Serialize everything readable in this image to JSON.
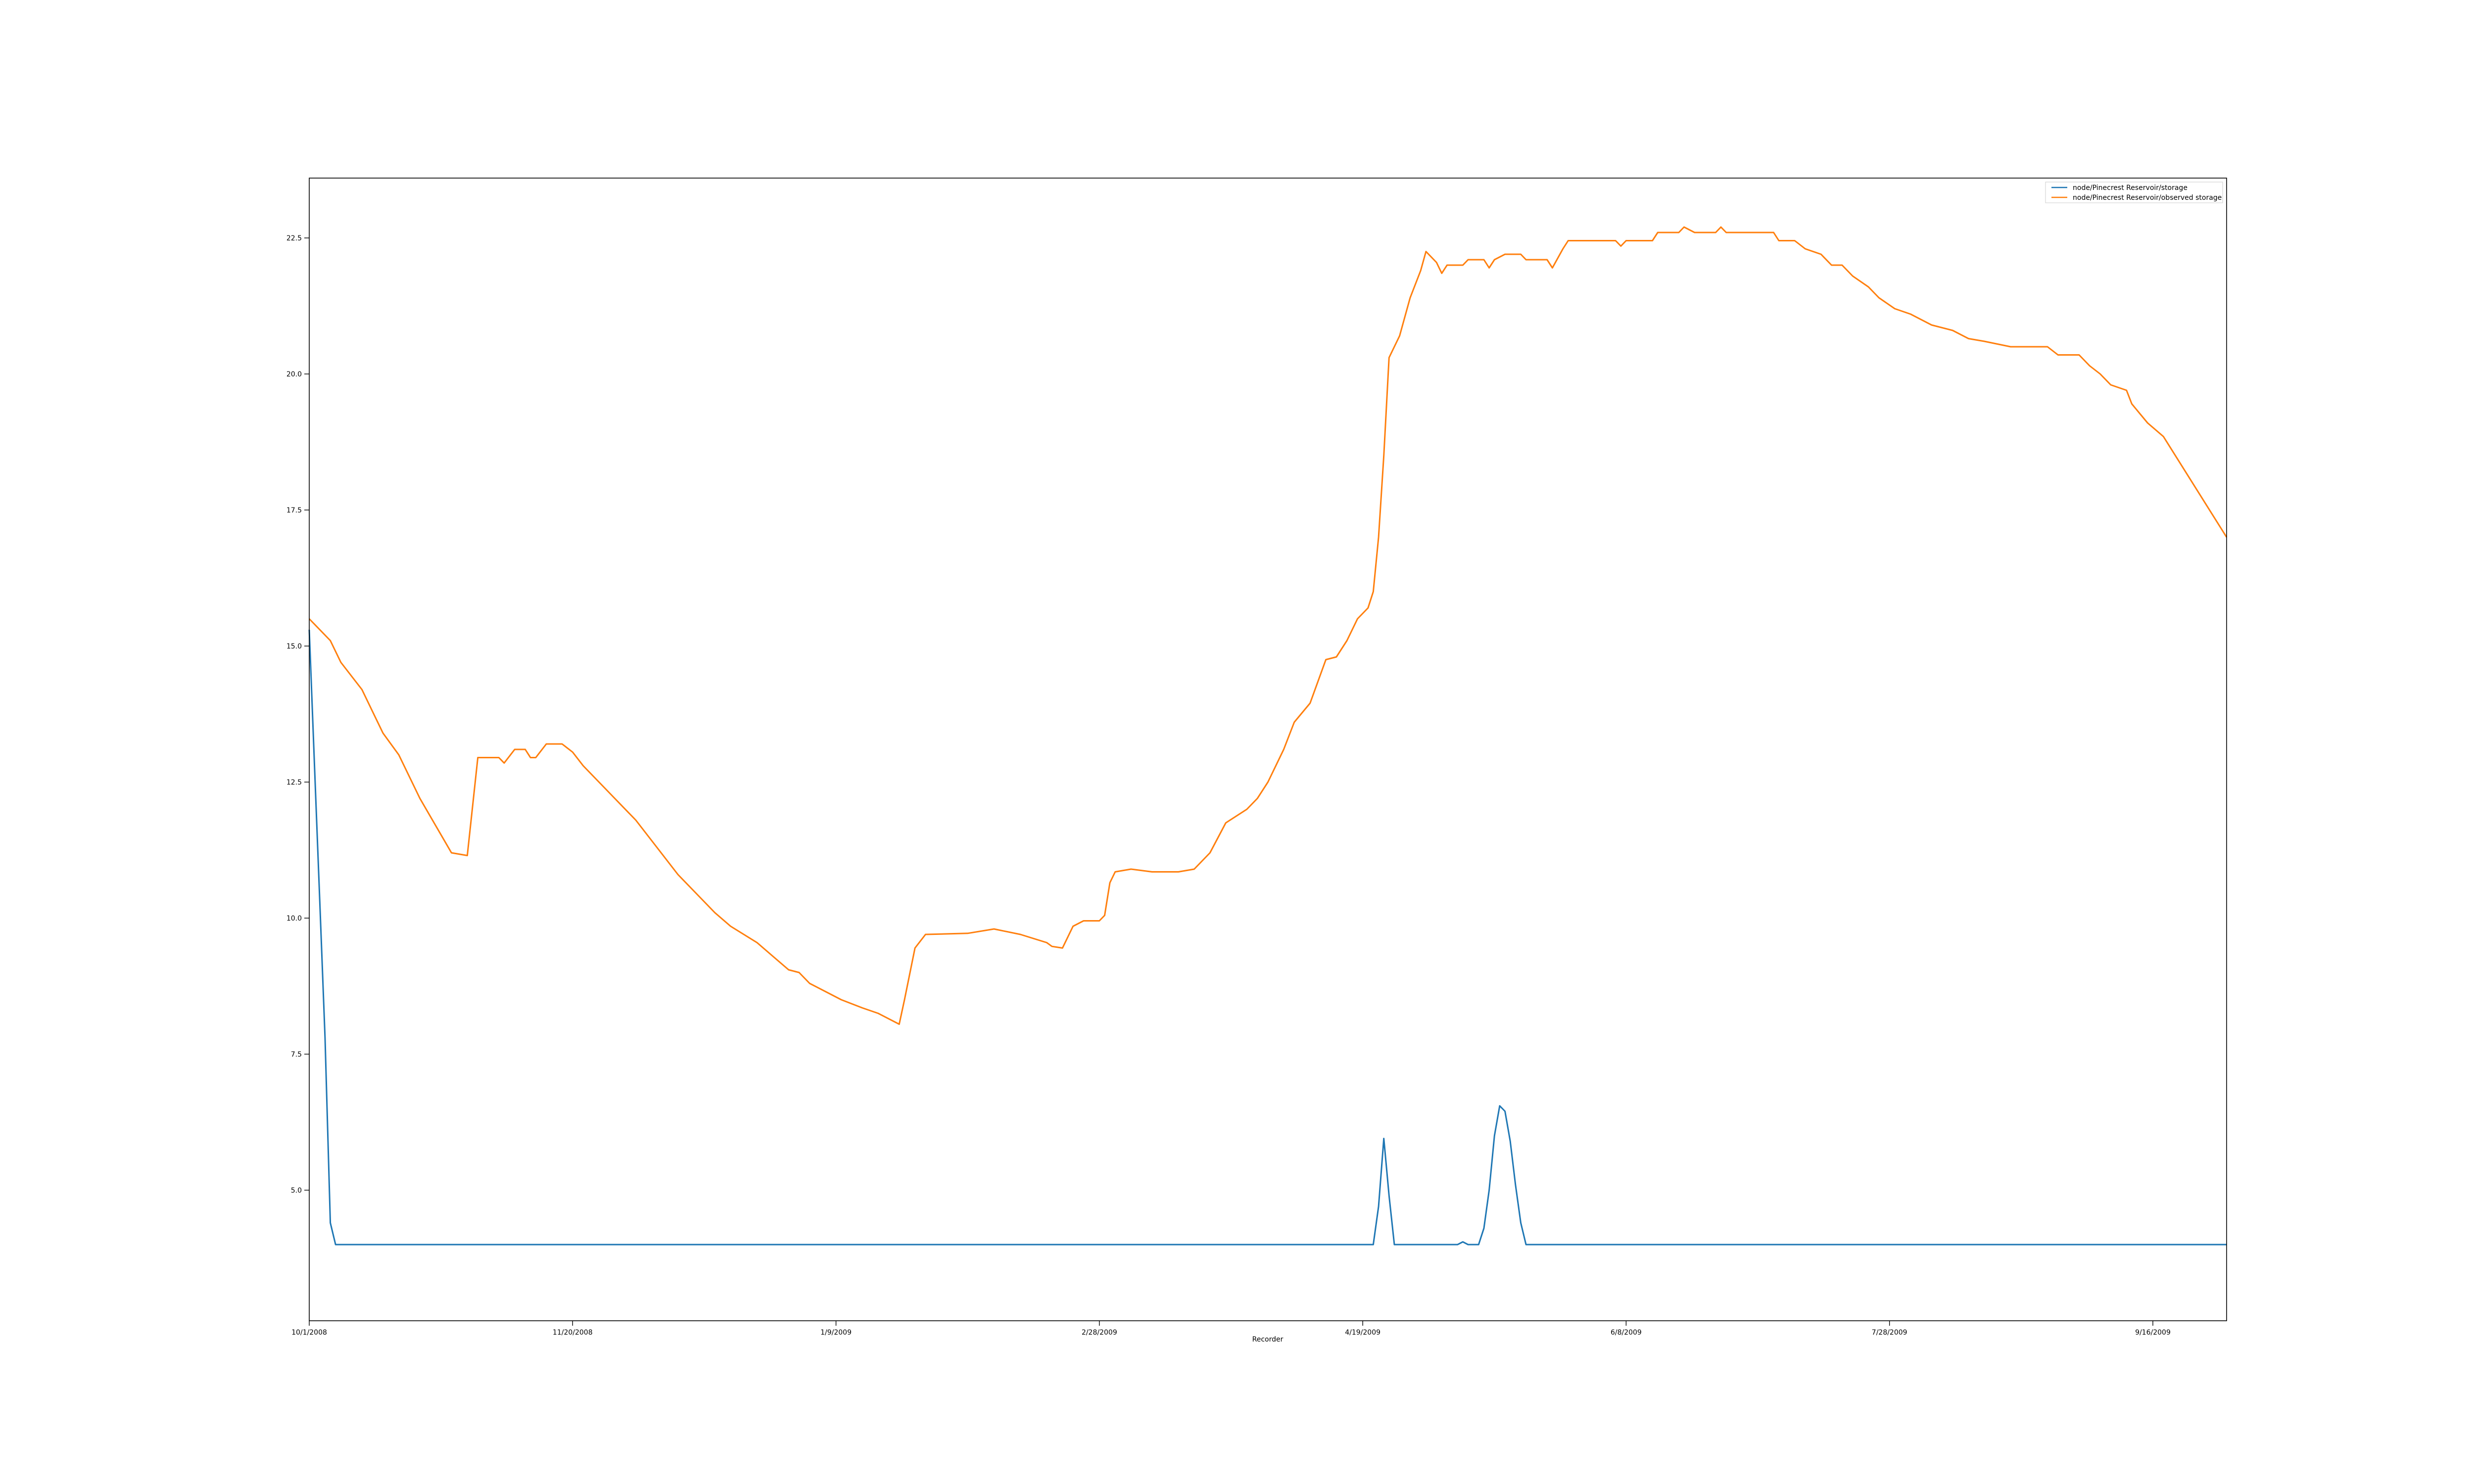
{
  "chart_data": {
    "type": "line",
    "title": "",
    "xlabel": "Recorder",
    "ylabel": "",
    "x_start": "10/1/2008",
    "x_end": "9/30/2009",
    "xlim": [
      "10/1/2008",
      "9/30/2009"
    ],
    "ylim": [
      2.6,
      23.6
    ],
    "x_ticks": [
      "10/1/2008",
      "11/20/2008",
      "1/9/2009",
      "2/28/2009",
      "4/19/2009",
      "6/8/2009",
      "7/28/2009",
      "9/16/2009"
    ],
    "y_ticks": [
      "5.0",
      "7.5",
      "10.0",
      "12.5",
      "15.0",
      "17.5",
      "20.0",
      "22.5"
    ],
    "grid": false,
    "legend_position": "top-right",
    "series": [
      {
        "name": "node/Pinecrest Reservoir/storage",
        "color": "#1f77b4",
        "points": [
          [
            "10/1/2008",
            15.3
          ],
          [
            "10/2/2008",
            12.8
          ],
          [
            "10/3/2008",
            10.3
          ],
          [
            "10/4/2008",
            7.8
          ],
          [
            "10/5/2008",
            4.4
          ],
          [
            "10/6/2008",
            4.0
          ],
          [
            "4/21/2009",
            4.0
          ],
          [
            "4/22/2009",
            4.7
          ],
          [
            "4/23/2009",
            5.95
          ],
          [
            "4/24/2009",
            4.9
          ],
          [
            "4/25/2009",
            4.0
          ],
          [
            "5/7/2009",
            4.0
          ],
          [
            "5/8/2009",
            4.05
          ],
          [
            "5/9/2009",
            4.0
          ],
          [
            "5/11/2009",
            4.0
          ],
          [
            "5/12/2009",
            4.3
          ],
          [
            "5/13/2009",
            5.0
          ],
          [
            "5/14/2009",
            6.0
          ],
          [
            "5/15/2009",
            6.55
          ],
          [
            "5/16/2009",
            6.45
          ],
          [
            "5/17/2009",
            5.9
          ],
          [
            "5/18/2009",
            5.1
          ],
          [
            "5/19/2009",
            4.4
          ],
          [
            "5/20/2009",
            4.0
          ],
          [
            "9/30/2009",
            4.0
          ]
        ]
      },
      {
        "name": "node/Pinecrest Reservoir/observed storage",
        "color": "#ff7f0e",
        "points": [
          [
            "10/1/2008",
            15.5
          ],
          [
            "10/5/2008",
            15.1
          ],
          [
            "10/7/2008",
            14.7
          ],
          [
            "10/11/2008",
            14.2
          ],
          [
            "10/13/2008",
            13.8
          ],
          [
            "10/15/2008",
            13.4
          ],
          [
            "10/18/2008",
            13.0
          ],
          [
            "10/20/2008",
            12.6
          ],
          [
            "10/22/2008",
            12.2
          ],
          [
            "10/25/2008",
            11.7
          ],
          [
            "10/28/2008",
            11.2
          ],
          [
            "10/31/2008",
            11.15
          ],
          [
            "11/2/2008",
            12.95
          ],
          [
            "11/6/2008",
            12.95
          ],
          [
            "11/7/2008",
            12.85
          ],
          [
            "11/9/2008",
            13.1
          ],
          [
            "11/11/2008",
            13.1
          ],
          [
            "11/12/2008",
            12.95
          ],
          [
            "11/13/2008",
            12.95
          ],
          [
            "11/15/2008",
            13.2
          ],
          [
            "11/18/2008",
            13.2
          ],
          [
            "11/20/2008",
            13.05
          ],
          [
            "11/22/2008",
            12.8
          ],
          [
            "11/25/2008",
            12.5
          ],
          [
            "11/28/2008",
            12.2
          ],
          [
            "12/2/2008",
            11.8
          ],
          [
            "12/6/2008",
            11.3
          ],
          [
            "12/10/2008",
            10.8
          ],
          [
            "12/13/2008",
            10.5
          ],
          [
            "12/17/2008",
            10.1
          ],
          [
            "12/20/2008",
            9.85
          ],
          [
            "12/25/2008",
            9.55
          ],
          [
            "12/28/2008",
            9.3
          ],
          [
            "12/31/2008",
            9.05
          ],
          [
            "1/2/2009",
            9.0
          ],
          [
            "1/4/2009",
            8.8
          ],
          [
            "1/7/2009",
            8.65
          ],
          [
            "1/10/2009",
            8.5
          ],
          [
            "1/14/2009",
            8.35
          ],
          [
            "1/17/2009",
            8.25
          ],
          [
            "1/21/2009",
            8.05
          ],
          [
            "1/22/2009",
            8.5
          ],
          [
            "1/24/2009",
            9.45
          ],
          [
            "1/26/2009",
            9.7
          ],
          [
            "2/3/2009",
            9.72
          ],
          [
            "2/8/2009",
            9.8
          ],
          [
            "2/13/2009",
            9.7
          ],
          [
            "2/18/2009",
            9.55
          ],
          [
            "2/19/2009",
            9.48
          ],
          [
            "2/21/2009",
            9.45
          ],
          [
            "2/23/2009",
            9.85
          ],
          [
            "2/25/2009",
            9.95
          ],
          [
            "2/28/2009",
            9.95
          ],
          [
            "3/1/2009",
            10.05
          ],
          [
            "3/2/2009",
            10.65
          ],
          [
            "3/3/2009",
            10.85
          ],
          [
            "3/6/2009",
            10.9
          ],
          [
            "3/10/2009",
            10.85
          ],
          [
            "3/15/2009",
            10.85
          ],
          [
            "3/18/2009",
            10.9
          ],
          [
            "3/21/2009",
            11.2
          ],
          [
            "3/24/2009",
            11.75
          ],
          [
            "3/28/2009",
            12.0
          ],
          [
            "3/30/2009",
            12.2
          ],
          [
            "4/1/2009",
            12.5
          ],
          [
            "4/4/2009",
            13.1
          ],
          [
            "4/6/2009",
            13.6
          ],
          [
            "4/9/2009",
            13.95
          ],
          [
            "4/12/2009",
            14.75
          ],
          [
            "4/14/2009",
            14.8
          ],
          [
            "4/16/2009",
            15.1
          ],
          [
            "4/18/2009",
            15.5
          ],
          [
            "4/20/2009",
            15.7
          ],
          [
            "4/21/2009",
            16.0
          ],
          [
            "4/22/2009",
            17.0
          ],
          [
            "4/23/2009",
            18.5
          ],
          [
            "4/24/2009",
            20.3
          ],
          [
            "4/26/2009",
            20.7
          ],
          [
            "4/28/2009",
            21.4
          ],
          [
            "4/30/2009",
            21.9
          ],
          [
            "5/1/2009",
            22.25
          ],
          [
            "5/3/2009",
            22.05
          ],
          [
            "5/4/2009",
            21.85
          ],
          [
            "5/5/2009",
            22.0
          ],
          [
            "5/8/2009",
            22.0
          ],
          [
            "5/9/2009",
            22.1
          ],
          [
            "5/12/2009",
            22.1
          ],
          [
            "5/13/2009",
            21.95
          ],
          [
            "5/14/2009",
            22.1
          ],
          [
            "5/16/2009",
            22.2
          ],
          [
            "5/19/2009",
            22.2
          ],
          [
            "5/20/2009",
            22.1
          ],
          [
            "5/24/2009",
            22.1
          ],
          [
            "5/25/2009",
            21.95
          ],
          [
            "5/27/2009",
            22.3
          ],
          [
            "5/28/2009",
            22.45
          ],
          [
            "6/6/2009",
            22.45
          ],
          [
            "6/7/2009",
            22.35
          ],
          [
            "6/8/2009",
            22.45
          ],
          [
            "6/13/2009",
            22.45
          ],
          [
            "6/14/2009",
            22.6
          ],
          [
            "6/18/2009",
            22.6
          ],
          [
            "6/19/2009",
            22.7
          ],
          [
            "6/21/2009",
            22.6
          ],
          [
            "6/25/2009",
            22.6
          ],
          [
            "6/26/2009",
            22.7
          ],
          [
            "6/27/2009",
            22.6
          ],
          [
            "7/6/2009",
            22.6
          ],
          [
            "7/7/2009",
            22.45
          ],
          [
            "7/10/2009",
            22.45
          ],
          [
            "7/12/2009",
            22.3
          ],
          [
            "7/15/2009",
            22.2
          ],
          [
            "7/17/2009",
            22.0
          ],
          [
            "7/19/2009",
            22.0
          ],
          [
            "7/21/2009",
            21.8
          ],
          [
            "7/24/2009",
            21.6
          ],
          [
            "7/26/2009",
            21.4
          ],
          [
            "7/29/2009",
            21.2
          ],
          [
            "8/1/2009",
            21.1
          ],
          [
            "8/5/2009",
            20.9
          ],
          [
            "8/9/2009",
            20.8
          ],
          [
            "8/12/2009",
            20.65
          ],
          [
            "8/15/2009",
            20.6
          ],
          [
            "8/20/2009",
            20.5
          ],
          [
            "8/27/2009",
            20.5
          ],
          [
            "8/29/2009",
            20.35
          ],
          [
            "9/2/2009",
            20.35
          ],
          [
            "9/4/2009",
            20.15
          ],
          [
            "9/6/2009",
            20.0
          ],
          [
            "9/8/2009",
            19.8
          ],
          [
            "9/11/2009",
            19.7
          ],
          [
            "9/12/2009",
            19.45
          ],
          [
            "9/15/2009",
            19.1
          ],
          [
            "9/18/2009",
            18.85
          ],
          [
            "9/30/2009",
            17.0
          ]
        ]
      }
    ]
  }
}
